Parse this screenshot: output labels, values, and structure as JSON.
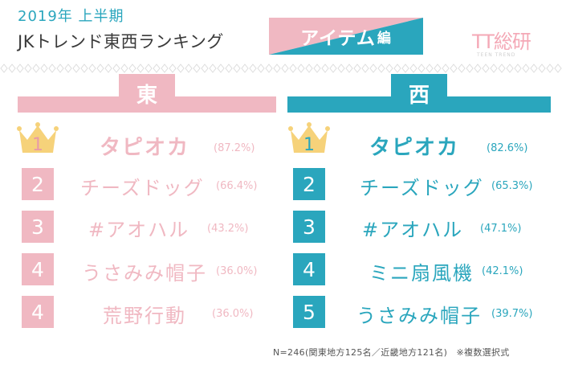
{
  "header": {
    "title_year": "2019年",
    "title_half": "上半期",
    "title_main": "JKトレンド東西ランキング",
    "badge_main": "アイテム",
    "badge_sub": "編",
    "logo_main": "TT総研",
    "logo_sub": "TEEN TREND"
  },
  "colors": {
    "east": "#f0b8c2",
    "west": "#2aa6bd",
    "east_crown": "#f6d27a"
  },
  "east": {
    "label": "東",
    "rows": [
      {
        "rank": "1",
        "item": "タピオカ",
        "pct": "(87.2%)"
      },
      {
        "rank": "2",
        "item": "チーズドッグ",
        "pct": "(66.4%)"
      },
      {
        "rank": "3",
        "item": "#アオハル",
        "pct": "(43.2%)"
      },
      {
        "rank": "4",
        "item": "うさみみ帽子",
        "pct": "(36.0%)"
      },
      {
        "rank": "4",
        "item": "荒野行動",
        "pct": "(36.0%)"
      }
    ]
  },
  "west": {
    "label": "西",
    "rows": [
      {
        "rank": "1",
        "item": "タピオカ",
        "pct": "(82.6%)"
      },
      {
        "rank": "2",
        "item": "チーズドッグ",
        "pct": "(65.3%)"
      },
      {
        "rank": "3",
        "item": "#アオハル",
        "pct": "(47.1%)"
      },
      {
        "rank": "4",
        "item": "ミニ扇風機",
        "pct": "(42.1%)"
      },
      {
        "rank": "5",
        "item": "うさみみ帽子",
        "pct": "(39.7%)"
      }
    ]
  },
  "footnote": "N=246(関東地方125名／近畿地方121名)　※複数選択式"
}
